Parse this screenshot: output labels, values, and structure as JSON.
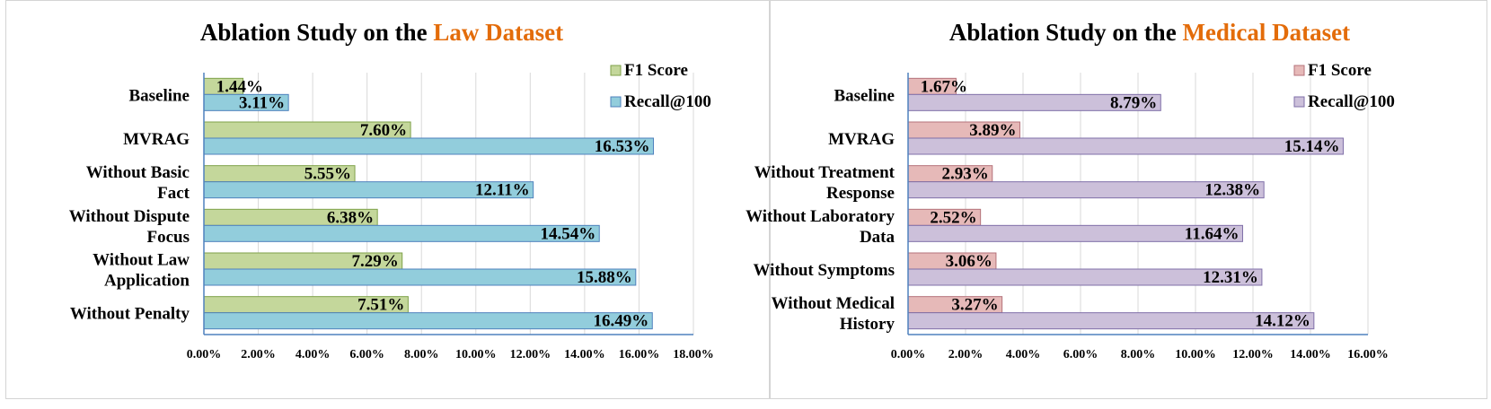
{
  "chart_data": [
    {
      "type": "bar",
      "orientation": "horizontal",
      "title_prefix": "Ablation Study on the ",
      "title_highlight": "Law Dataset",
      "title_highlight_color": "#E36C0A",
      "categories": [
        "Baseline",
        "MVRAG",
        "Without Basic Fact",
        "Without Dispute Focus",
        "Without Law Application",
        "Without Penalty"
      ],
      "category_lines": [
        [
          "Baseline"
        ],
        [
          "MVRAG"
        ],
        [
          "Without Basic",
          "Fact"
        ],
        [
          "Without Dispute",
          "Focus"
        ],
        [
          "Without Law",
          "Application"
        ],
        [
          "Without Penalty"
        ]
      ],
      "series": [
        {
          "name": "F1 Score",
          "values": [
            1.44,
            7.6,
            5.55,
            6.38,
            7.29,
            7.51
          ],
          "labels": [
            "1.44%",
            "7.60%",
            "5.55%",
            "6.38%",
            "7.29%",
            "7.51%"
          ],
          "color": "#C4D79B",
          "stroke": "#7FA24A"
        },
        {
          "name": "Recall@100",
          "values": [
            3.11,
            16.53,
            12.11,
            14.54,
            15.88,
            16.49
          ],
          "labels": [
            "3.11%",
            "16.53%",
            "12.11%",
            "14.54%",
            "15.88%",
            "16.49%"
          ],
          "color": "#92CDDC",
          "stroke": "#4F81BD"
        }
      ],
      "xlim": [
        0,
        18
      ],
      "xticks": [
        "0.00%",
        "2.00%",
        "4.00%",
        "6.00%",
        "8.00%",
        "10.00%",
        "12.00%",
        "14.00%",
        "16.00%",
        "18.00%"
      ],
      "grid": true,
      "legend": "top-right"
    },
    {
      "type": "bar",
      "orientation": "horizontal",
      "title_prefix": "Ablation Study on the ",
      "title_highlight": "Medical Dataset",
      "title_highlight_color": "#E36C0A",
      "categories": [
        "Baseline",
        "MVRAG",
        "Without Treatment Response",
        "Without Laboratory Data",
        "Without Symptoms",
        "Without Medical History"
      ],
      "category_lines": [
        [
          "Baseline"
        ],
        [
          "MVRAG"
        ],
        [
          "Without Treatment",
          "Response"
        ],
        [
          "Without Laboratory",
          "Data"
        ],
        [
          "Without Symptoms"
        ],
        [
          "Without Medical",
          "History"
        ]
      ],
      "series": [
        {
          "name": "F1 Score",
          "values": [
            1.67,
            3.89,
            2.93,
            2.52,
            3.06,
            3.27
          ],
          "labels": [
            "1.67%",
            "3.89%",
            "2.93%",
            "2.52%",
            "3.06%",
            "3.27%"
          ],
          "color": "#E6B9B8",
          "stroke": "#B5737B"
        },
        {
          "name": "Recall@100",
          "values": [
            8.79,
            15.14,
            12.38,
            11.64,
            12.31,
            14.12
          ],
          "labels": [
            "8.79%",
            "15.14%",
            "12.38%",
            "11.64%",
            "12.31%",
            "14.12%"
          ],
          "color": "#CCC0DA",
          "stroke": "#7F6FA8"
        }
      ],
      "xlim": [
        0,
        16
      ],
      "xticks": [
        "0.00%",
        "2.00%",
        "4.00%",
        "6.00%",
        "8.00%",
        "10.00%",
        "12.00%",
        "14.00%",
        "16.00%"
      ],
      "grid": true,
      "legend": "top-right"
    }
  ]
}
